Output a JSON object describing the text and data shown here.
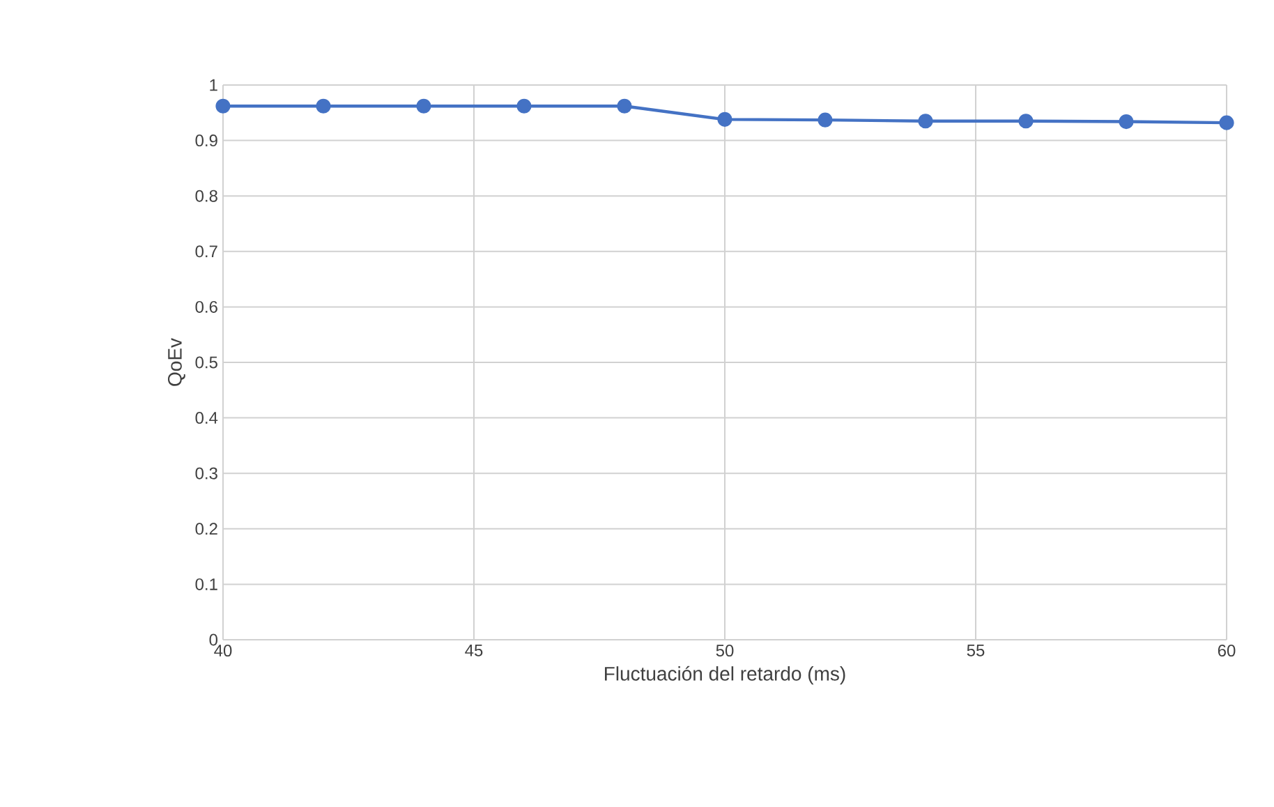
{
  "chart_data": {
    "type": "line",
    "xlabel": "Fluctuación del retardo (ms)",
    "ylabel": "QoEv",
    "x": [
      40,
      42,
      44,
      46,
      48,
      50,
      52,
      54,
      56,
      58,
      60
    ],
    "series": [
      {
        "color": "#4472c4",
        "values": [
          0.962,
          0.962,
          0.962,
          0.962,
          0.962,
          0.938,
          0.937,
          0.935,
          0.935,
          0.934,
          0.932
        ]
      }
    ],
    "xlim": [
      40,
      60
    ],
    "xticks": [
      40,
      45,
      50,
      55,
      60
    ],
    "ylim": [
      0,
      1
    ],
    "yticks": [
      0,
      0.1,
      0.2,
      0.3,
      0.4,
      0.5,
      0.6,
      0.7,
      0.8,
      0.9,
      1
    ],
    "grid": true,
    "marker": "circle",
    "line_style": "solid"
  }
}
